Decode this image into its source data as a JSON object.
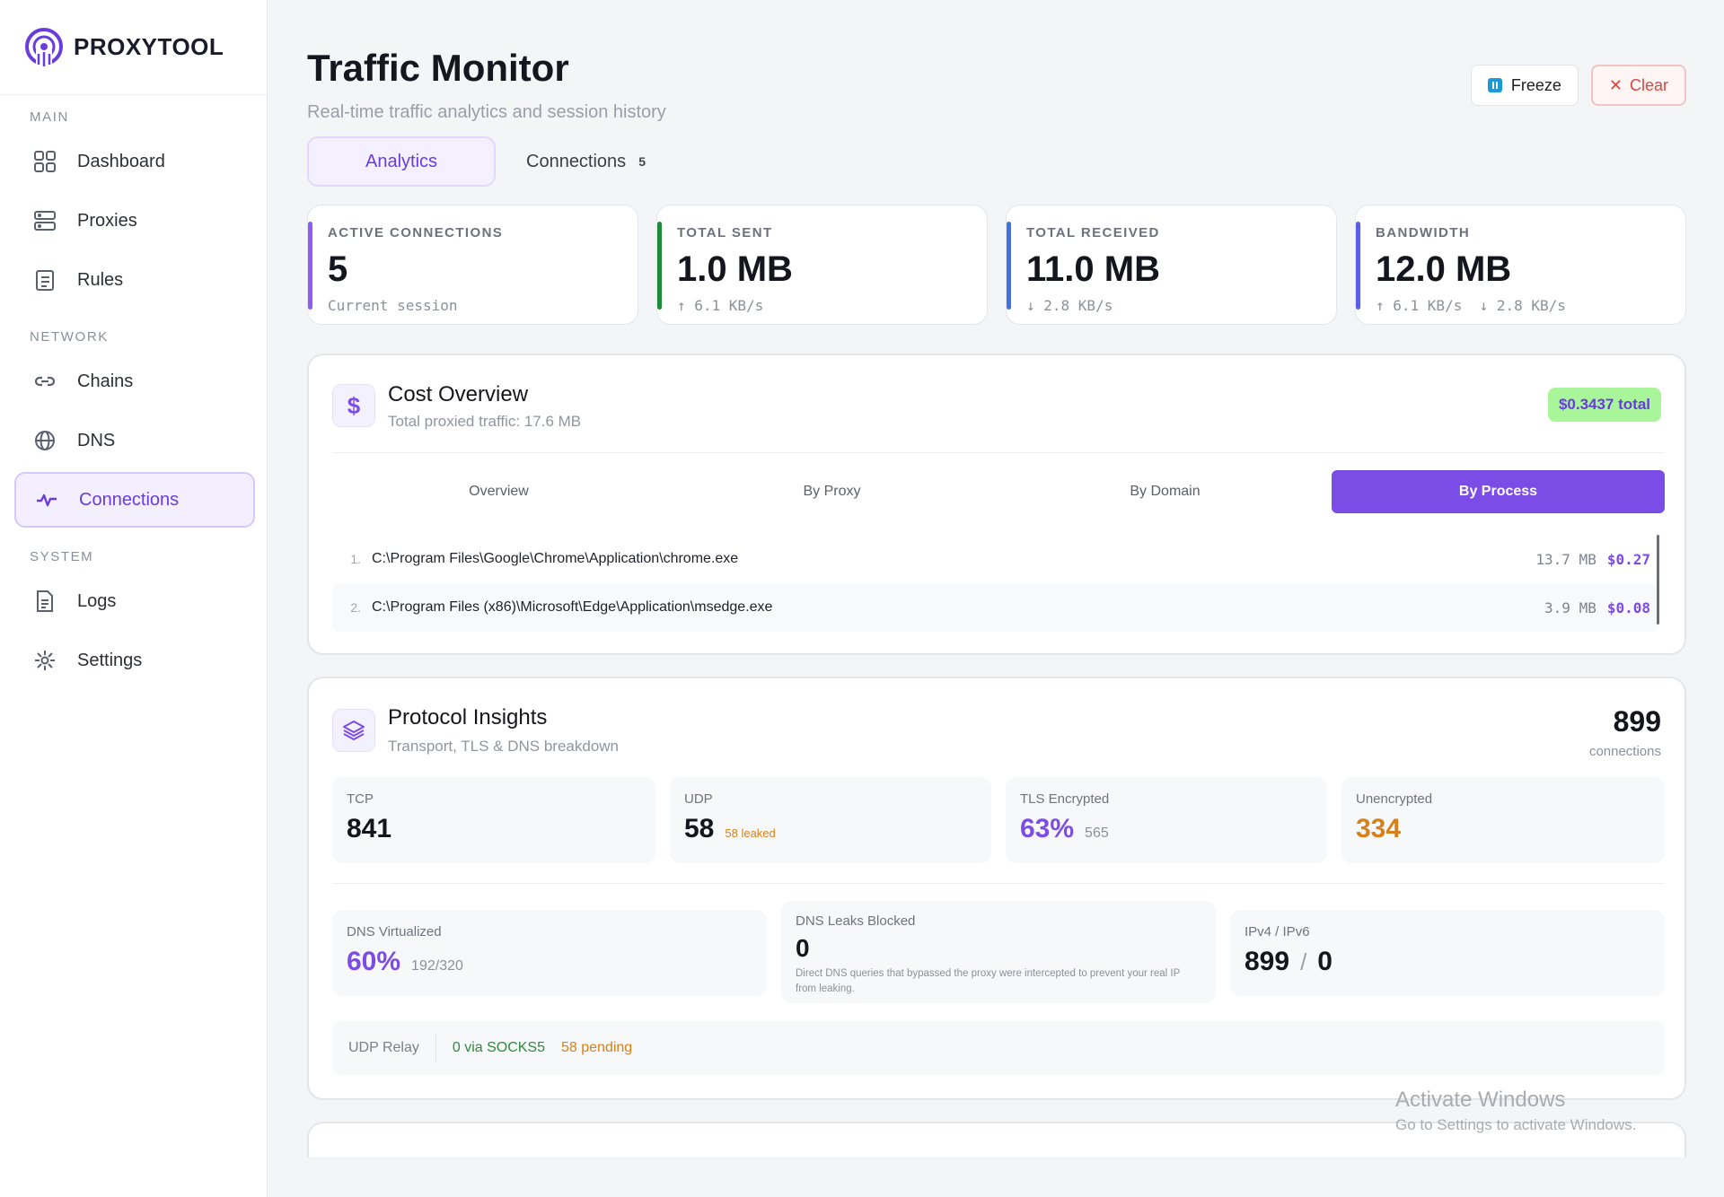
{
  "brand": {
    "name": "PROXYTOOL"
  },
  "sidebar": {
    "sections": {
      "main": "MAIN",
      "network": "NETWORK",
      "system": "SYSTEM"
    },
    "items": [
      {
        "label": "Dashboard",
        "icon": "grid-icon"
      },
      {
        "label": "Proxies",
        "icon": "server-icon"
      },
      {
        "label": "Rules",
        "icon": "clipboard-icon"
      },
      {
        "label": "Chains",
        "icon": "link-icon"
      },
      {
        "label": "DNS",
        "icon": "globe-icon"
      },
      {
        "label": "Connections",
        "icon": "activity-icon",
        "active": true
      },
      {
        "label": "Logs",
        "icon": "document-icon"
      },
      {
        "label": "Settings",
        "icon": "gear-icon"
      }
    ]
  },
  "header": {
    "title": "Traffic Monitor",
    "subtitle": "Real-time traffic analytics and session history",
    "freeze_label": "Freeze",
    "clear_label": "Clear"
  },
  "tabs": [
    {
      "label": "Analytics",
      "active": true
    },
    {
      "label": "Connections",
      "count": "5"
    }
  ],
  "stats": [
    {
      "label": "ACTIVE CONNECTIONS",
      "value": "5",
      "sub": "Current session",
      "color": "#8b5cf6"
    },
    {
      "label": "TOTAL SENT",
      "value": "1.0 MB",
      "sub": "↑ 6.1 KB/s",
      "color": "#1e8a3a"
    },
    {
      "label": "TOTAL RECEIVED",
      "value": "11.0 MB",
      "sub": "↓ 2.8 KB/s",
      "color": "#3b73e0"
    },
    {
      "label": "BANDWIDTH",
      "value": "12.0 MB",
      "sub": "↑ 6.1 KB/s  ↓ 2.8 KB/s",
      "color": "#5b5ee6"
    }
  ],
  "cost": {
    "title": "Cost Overview",
    "subtitle": "Total proxied traffic: 17.6 MB",
    "total": "$0.3437 total",
    "segments": [
      "Overview",
      "By Proxy",
      "By Domain",
      "By Process"
    ],
    "active_segment": "By Process",
    "rows": [
      {
        "num": "1.",
        "path": "C:\\Program Files\\Google\\Chrome\\Application\\chrome.exe",
        "size": "13.7 MB",
        "cost": "$0.27"
      },
      {
        "num": "2.",
        "path": "C:\\Program Files (x86)\\Microsoft\\Edge\\Application\\msedge.exe",
        "size": "3.9 MB",
        "cost": "$0.08"
      }
    ]
  },
  "protocol": {
    "title": "Protocol Insights",
    "subtitle": "Transport, TLS & DNS breakdown",
    "total": "899",
    "total_label": "connections",
    "tcp": {
      "label": "TCP",
      "value": "841"
    },
    "udp": {
      "label": "UDP",
      "value": "58",
      "note": "58 leaked"
    },
    "tls": {
      "label": "TLS Encrypted",
      "value": "63%",
      "note": "565"
    },
    "unencrypted": {
      "label": "Unencrypted",
      "value": "334"
    },
    "dns_virtualized": {
      "label": "DNS Virtualized",
      "value": "60%",
      "note": "192/320"
    },
    "dns_leaks": {
      "label": "DNS Leaks Blocked",
      "value": "0",
      "note": "Direct DNS queries that bypassed the proxy were intercepted to prevent your real IP from leaking."
    },
    "ip": {
      "label": "IPv4 / IPv6",
      "v4": "899",
      "sep": "/",
      "v6": "0"
    },
    "relay": {
      "label": "UDP Relay",
      "via": "0 via SOCKS5",
      "pending": "58 pending"
    }
  },
  "watermark": {
    "line1": "Activate Windows",
    "line2": "Go to Settings to activate Windows."
  }
}
